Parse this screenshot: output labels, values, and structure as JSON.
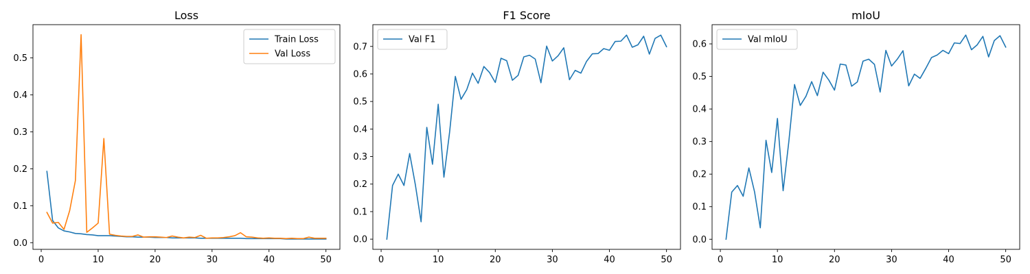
{
  "chart_data": [
    {
      "type": "line",
      "title": "Loss",
      "xlabel": "",
      "ylabel": "",
      "xlim": [
        -1.45,
        52.45
      ],
      "ylim": [
        -0.018,
        0.59
      ],
      "xticks": [
        0,
        10,
        20,
        30,
        40,
        50
      ],
      "yticks": [
        0.0,
        0.1,
        0.2,
        0.3,
        0.4,
        0.5
      ],
      "ytick_decimals": 1,
      "grid": false,
      "legend": "top-right",
      "x": [
        1,
        2,
        3,
        4,
        5,
        6,
        7,
        8,
        9,
        10,
        11,
        12,
        13,
        14,
        15,
        16,
        17,
        18,
        19,
        20,
        21,
        22,
        23,
        24,
        25,
        26,
        27,
        28,
        29,
        30,
        31,
        32,
        33,
        34,
        35,
        36,
        37,
        38,
        39,
        40,
        41,
        42,
        43,
        44,
        45,
        46,
        47,
        48,
        49,
        50
      ],
      "series": [
        {
          "name": "Train Loss",
          "color": "#1f77b4",
          "values": [
            0.193,
            0.06,
            0.04,
            0.032,
            0.029,
            0.025,
            0.024,
            0.022,
            0.021,
            0.019,
            0.019,
            0.019,
            0.018,
            0.017,
            0.016,
            0.016,
            0.015,
            0.015,
            0.015,
            0.014,
            0.014,
            0.014,
            0.013,
            0.013,
            0.013,
            0.013,
            0.013,
            0.012,
            0.012,
            0.012,
            0.012,
            0.012,
            0.012,
            0.012,
            0.012,
            0.011,
            0.011,
            0.011,
            0.011,
            0.011,
            0.011,
            0.011,
            0.01,
            0.01,
            0.01,
            0.01,
            0.01,
            0.01,
            0.01,
            0.01
          ]
        },
        {
          "name": "Val Loss",
          "color": "#ff7f0e",
          "values": [
            0.082,
            0.053,
            0.055,
            0.036,
            0.087,
            0.168,
            0.563,
            0.028,
            0.04,
            0.053,
            0.282,
            0.023,
            0.02,
            0.018,
            0.017,
            0.017,
            0.021,
            0.015,
            0.016,
            0.016,
            0.015,
            0.014,
            0.018,
            0.015,
            0.013,
            0.015,
            0.014,
            0.02,
            0.012,
            0.013,
            0.013,
            0.014,
            0.016,
            0.019,
            0.027,
            0.016,
            0.015,
            0.013,
            0.012,
            0.013,
            0.012,
            0.012,
            0.011,
            0.012,
            0.011,
            0.011,
            0.015,
            0.012,
            0.012,
            0.012
          ]
        }
      ]
    },
    {
      "type": "line",
      "title": "F1 Score",
      "xlabel": "",
      "ylabel": "",
      "xlim": [
        -1.45,
        52.45
      ],
      "ylim": [
        -0.037,
        0.779
      ],
      "xticks": [
        0,
        10,
        20,
        30,
        40,
        50
      ],
      "yticks": [
        0.0,
        0.1,
        0.2,
        0.3,
        0.4,
        0.5,
        0.6,
        0.7
      ],
      "ytick_decimals": 1,
      "grid": false,
      "legend": "top-left",
      "x": [
        1,
        2,
        3,
        4,
        5,
        6,
        7,
        8,
        9,
        10,
        11,
        12,
        13,
        14,
        15,
        16,
        17,
        18,
        19,
        20,
        21,
        22,
        23,
        24,
        25,
        26,
        27,
        28,
        29,
        30,
        31,
        32,
        33,
        34,
        35,
        36,
        37,
        38,
        39,
        40,
        41,
        42,
        43,
        44,
        45,
        46,
        47,
        48,
        49,
        50
      ],
      "series": [
        {
          "name": "Val F1",
          "color": "#1f77b4",
          "values": [
            0.0,
            0.195,
            0.236,
            0.195,
            0.311,
            0.197,
            0.063,
            0.406,
            0.272,
            0.49,
            0.225,
            0.389,
            0.591,
            0.508,
            0.543,
            0.603,
            0.566,
            0.627,
            0.605,
            0.569,
            0.657,
            0.648,
            0.577,
            0.595,
            0.662,
            0.668,
            0.654,
            0.568,
            0.701,
            0.647,
            0.666,
            0.695,
            0.579,
            0.613,
            0.603,
            0.646,
            0.673,
            0.674,
            0.692,
            0.686,
            0.718,
            0.719,
            0.741,
            0.697,
            0.706,
            0.737,
            0.672,
            0.729,
            0.741,
            0.699
          ]
        }
      ]
    },
    {
      "type": "line",
      "title": "mIoU",
      "xlabel": "",
      "ylabel": "",
      "xlim": [
        -1.45,
        52.45
      ],
      "ylim": [
        -0.031,
        0.659
      ],
      "xticks": [
        0,
        10,
        20,
        30,
        40,
        50
      ],
      "yticks": [
        0.0,
        0.1,
        0.2,
        0.3,
        0.4,
        0.5,
        0.6
      ],
      "ytick_decimals": 1,
      "grid": false,
      "legend": "top-left",
      "x": [
        1,
        2,
        3,
        4,
        5,
        6,
        7,
        8,
        9,
        10,
        11,
        12,
        13,
        14,
        15,
        16,
        17,
        18,
        19,
        20,
        21,
        22,
        23,
        24,
        25,
        26,
        27,
        28,
        29,
        30,
        31,
        32,
        33,
        34,
        35,
        36,
        37,
        38,
        39,
        40,
        41,
        42,
        43,
        44,
        45,
        46,
        47,
        48,
        49,
        50
      ],
      "series": [
        {
          "name": "Val mIoU",
          "color": "#1f77b4",
          "values": [
            0.0,
            0.145,
            0.165,
            0.132,
            0.219,
            0.145,
            0.035,
            0.304,
            0.205,
            0.371,
            0.149,
            0.3,
            0.475,
            0.411,
            0.439,
            0.484,
            0.441,
            0.513,
            0.489,
            0.458,
            0.538,
            0.535,
            0.47,
            0.483,
            0.547,
            0.553,
            0.537,
            0.452,
            0.58,
            0.532,
            0.553,
            0.579,
            0.471,
            0.507,
            0.494,
            0.525,
            0.558,
            0.566,
            0.58,
            0.57,
            0.603,
            0.601,
            0.627,
            0.582,
            0.597,
            0.623,
            0.56,
            0.61,
            0.625,
            0.59
          ]
        }
      ]
    }
  ]
}
